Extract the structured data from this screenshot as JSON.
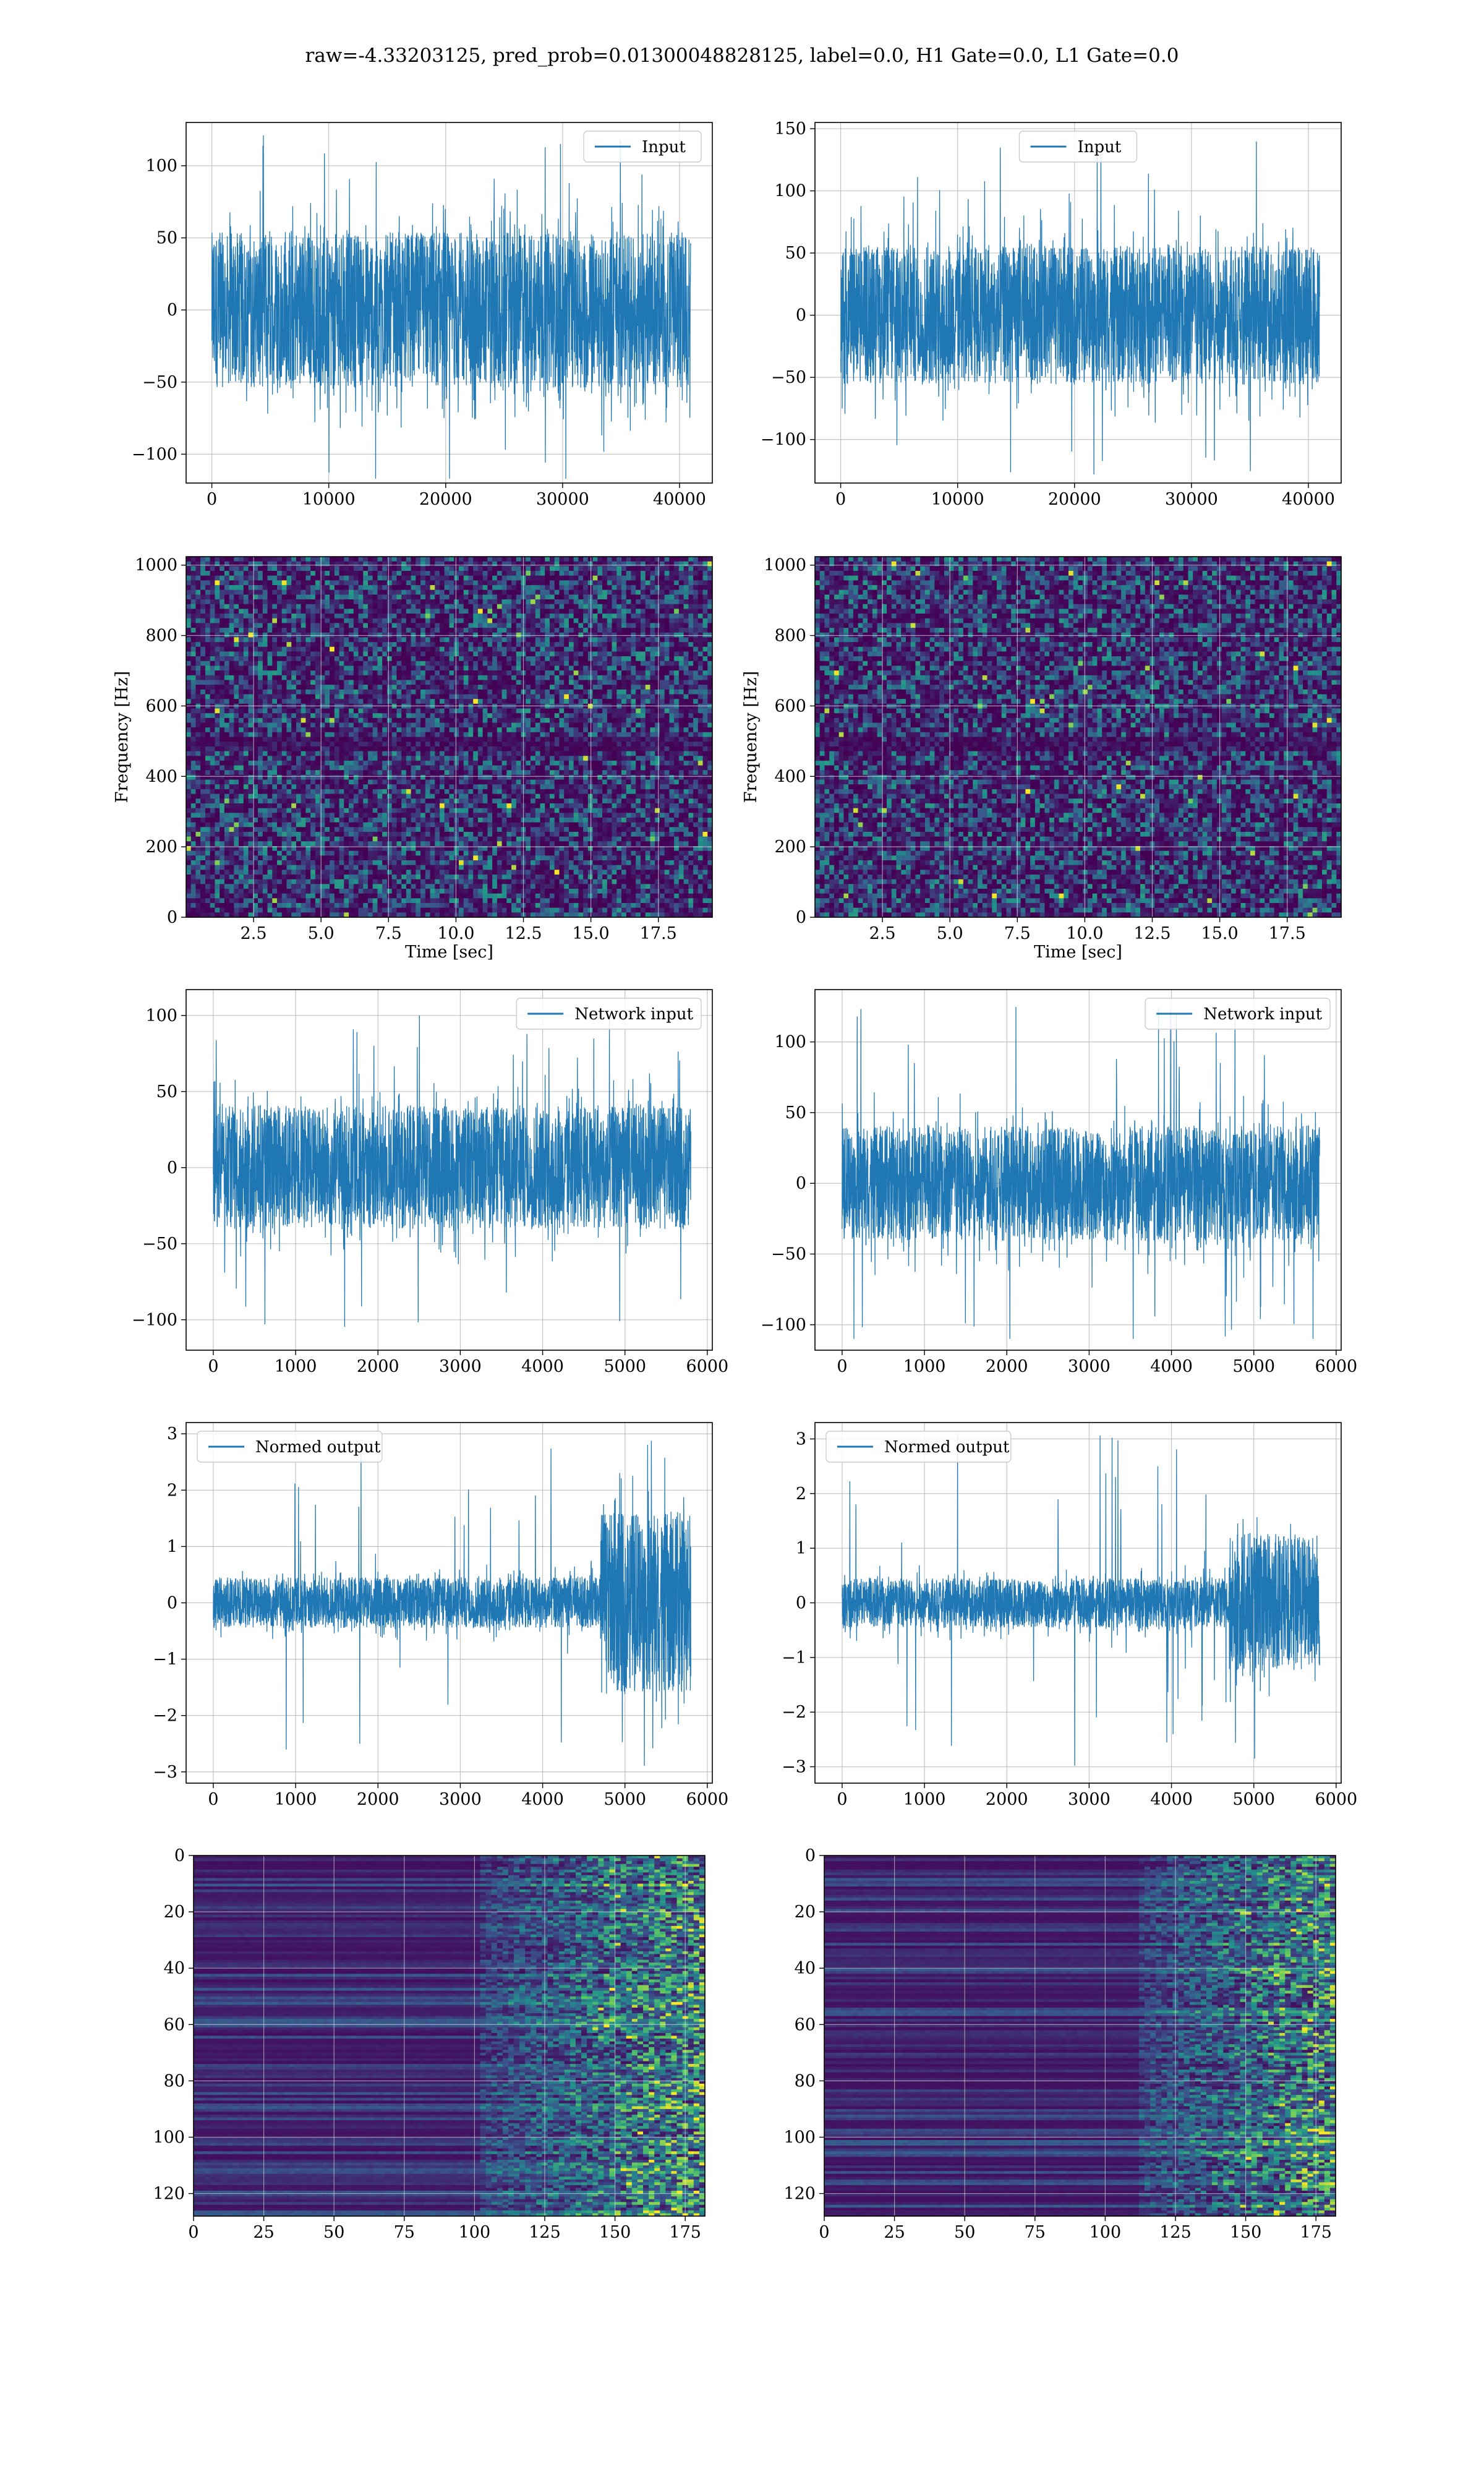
{
  "figure": {
    "suptitle": "raw=-4.33203125, pred_prob=0.01300048828125, label=0.0, H1 Gate=0.0, L1 Gate=0.0"
  },
  "colors": {
    "line": "#1f77b4",
    "grid": "#b0b0b0",
    "viridis_low": "#440154",
    "viridis_mid": "#21918c",
    "viridis_high": "#fde725"
  },
  "chart_data": [
    {
      "id": "ts-input-left",
      "type": "line",
      "legend": "Input",
      "legend_loc": "upper right",
      "x_range": [
        0,
        40960
      ],
      "ylim": [
        -120,
        130
      ],
      "xticks": [
        0,
        10000,
        20000,
        30000,
        40000
      ],
      "xtick_labels": [
        "0",
        "10000",
        "20000",
        "30000",
        "40000"
      ],
      "yticks": [
        -100,
        -50,
        0,
        50,
        100
      ],
      "ytick_labels": [
        "−100",
        "−50",
        "0",
        "50",
        "100"
      ],
      "envelope_high": 60,
      "envelope_low": -60,
      "spike_max": 126,
      "spike_min": -117,
      "grid": true,
      "xlabel": "",
      "ylabel": ""
    },
    {
      "id": "ts-input-right",
      "type": "line",
      "legend": "Input",
      "legend_loc": "upper center",
      "x_range": [
        0,
        40960
      ],
      "ylim": [
        -135,
        155
      ],
      "xticks": [
        0,
        10000,
        20000,
        30000,
        40000
      ],
      "xtick_labels": [
        "0",
        "10000",
        "20000",
        "30000",
        "40000"
      ],
      "yticks": [
        -100,
        -50,
        0,
        50,
        100,
        150
      ],
      "ytick_labels": [
        "−100",
        "−50",
        "0",
        "50",
        "100",
        "150"
      ],
      "envelope_high": 62,
      "envelope_low": -62,
      "spike_max": 140,
      "spike_min": -128,
      "grid": true,
      "xlabel": "",
      "ylabel": ""
    },
    {
      "id": "spec-left",
      "type": "heatmap",
      "xlim": [
        0,
        19.5
      ],
      "ylim": [
        0,
        1024
      ],
      "xticks": [
        2.5,
        5,
        7.5,
        10,
        12.5,
        15,
        17.5
      ],
      "xtick_labels": [
        "2.5",
        "5.0",
        "7.5",
        "10.0",
        "12.5",
        "15.0",
        "17.5"
      ],
      "yticks": [
        0,
        200,
        400,
        600,
        800,
        1000
      ],
      "ytick_labels": [
        "0",
        "200",
        "400",
        "600",
        "800",
        "1000"
      ],
      "xlabel": "Time [sec]",
      "ylabel": "Frequency [Hz]",
      "colormap": "viridis",
      "grid": true
    },
    {
      "id": "spec-right",
      "type": "heatmap",
      "xlim": [
        0,
        19.5
      ],
      "ylim": [
        0,
        1024
      ],
      "xticks": [
        2.5,
        5,
        7.5,
        10,
        12.5,
        15,
        17.5
      ],
      "xtick_labels": [
        "2.5",
        "5.0",
        "7.5",
        "10.0",
        "12.5",
        "15.0",
        "17.5"
      ],
      "yticks": [
        0,
        200,
        400,
        600,
        800,
        1000
      ],
      "ytick_labels": [
        "0",
        "200",
        "400",
        "600",
        "800",
        "1000"
      ],
      "xlabel": "Time [sec]",
      "ylabel": "Frequency [Hz]",
      "colormap": "viridis",
      "grid": true
    },
    {
      "id": "net-left",
      "type": "line",
      "legend": "Network input",
      "legend_loc": "upper right",
      "x_range": [
        0,
        5800
      ],
      "ylim": [
        -120,
        117
      ],
      "xticks": [
        0,
        1000,
        2000,
        3000,
        4000,
        5000,
        6000
      ],
      "xtick_labels": [
        "0",
        "1000",
        "2000",
        "3000",
        "4000",
        "5000",
        "6000"
      ],
      "yticks": [
        -100,
        -50,
        0,
        50,
        100
      ],
      "ytick_labels": [
        "−100",
        "−50",
        "0",
        "50",
        "100"
      ],
      "envelope_high": 45,
      "envelope_low": -45,
      "spike_max": 100,
      "spike_min": -113,
      "grid": true,
      "xlabel": "",
      "ylabel": ""
    },
    {
      "id": "net-right",
      "type": "line",
      "legend": "Network input",
      "legend_loc": "upper right",
      "x_range": [
        0,
        5800
      ],
      "ylim": [
        -118,
        137
      ],
      "xticks": [
        0,
        1000,
        2000,
        3000,
        4000,
        5000,
        6000
      ],
      "xtick_labels": [
        "0",
        "1000",
        "2000",
        "3000",
        "4000",
        "5000",
        "6000"
      ],
      "yticks": [
        -100,
        -50,
        0,
        50,
        100
      ],
      "ytick_labels": [
        "−100",
        "−50",
        "0",
        "50",
        "100"
      ],
      "envelope_high": 45,
      "envelope_low": -45,
      "spike_max": 125,
      "spike_min": -110,
      "grid": true,
      "xlabel": "",
      "ylabel": ""
    },
    {
      "id": "norm-left",
      "type": "line",
      "legend": "Normed output",
      "legend_loc": "upper left",
      "x_range": [
        0,
        5800
      ],
      "ylim": [
        -3.2,
        3.2
      ],
      "xticks": [
        0,
        1000,
        2000,
        3000,
        4000,
        5000,
        6000
      ],
      "xtick_labels": [
        "0",
        "1000",
        "2000",
        "3000",
        "4000",
        "5000",
        "6000"
      ],
      "yticks": [
        -3,
        -2,
        -1,
        0,
        1,
        2,
        3
      ],
      "ytick_labels": [
        "−3",
        "−2",
        "−1",
        "0",
        "1",
        "2",
        "3"
      ],
      "envelope_high": 0.5,
      "envelope_low": -0.5,
      "burst_start": 4700,
      "burst_high": 1.8,
      "burst_low": -1.8,
      "spike_max": 2.9,
      "spike_min": -2.9,
      "grid": true,
      "xlabel": "",
      "ylabel": ""
    },
    {
      "id": "norm-right",
      "type": "line",
      "legend": "Normed output",
      "legend_loc": "upper left",
      "x_range": [
        0,
        5800
      ],
      "ylim": [
        -3.3,
        3.3
      ],
      "xticks": [
        0,
        1000,
        2000,
        3000,
        4000,
        5000,
        6000
      ],
      "xtick_labels": [
        "0",
        "1000",
        "2000",
        "3000",
        "4000",
        "5000",
        "6000"
      ],
      "yticks": [
        -3,
        -2,
        -1,
        0,
        1,
        2,
        3
      ],
      "ytick_labels": [
        "−3",
        "−2",
        "−1",
        "0",
        "1",
        "2",
        "3"
      ],
      "envelope_high": 0.5,
      "envelope_low": -0.5,
      "burst_start": 4700,
      "burst_high": 1.4,
      "burst_low": -1.4,
      "spike_max": 3.1,
      "spike_min": -3.1,
      "grid": true,
      "xlabel": "",
      "ylabel": ""
    },
    {
      "id": "feat-left",
      "type": "heatmap",
      "xlim": [
        0,
        182
      ],
      "ylim": [
        128,
        0
      ],
      "xticks": [
        0,
        25,
        50,
        75,
        100,
        125,
        150,
        175
      ],
      "xtick_labels": [
        "0",
        "25",
        "50",
        "75",
        "100",
        "125",
        "150",
        "175"
      ],
      "yticks": [
        0,
        20,
        40,
        60,
        80,
        100,
        120
      ],
      "ytick_labels": [
        "0",
        "20",
        "40",
        "60",
        "80",
        "100",
        "120"
      ],
      "activation_onset": 100,
      "colormap": "viridis",
      "grid": true,
      "xlabel": "",
      "ylabel": ""
    },
    {
      "id": "feat-right",
      "type": "heatmap",
      "xlim": [
        0,
        182
      ],
      "ylim": [
        128,
        0
      ],
      "xticks": [
        0,
        25,
        50,
        75,
        100,
        125,
        150,
        175
      ],
      "xtick_labels": [
        "0",
        "25",
        "50",
        "75",
        "100",
        "125",
        "150",
        "175"
      ],
      "yticks": [
        0,
        20,
        40,
        60,
        80,
        100,
        120
      ],
      "ytick_labels": [
        "0",
        "20",
        "40",
        "60",
        "80",
        "100",
        "120"
      ],
      "activation_onset": 110,
      "colormap": "viridis",
      "grid": true,
      "xlabel": "",
      "ylabel": ""
    }
  ]
}
